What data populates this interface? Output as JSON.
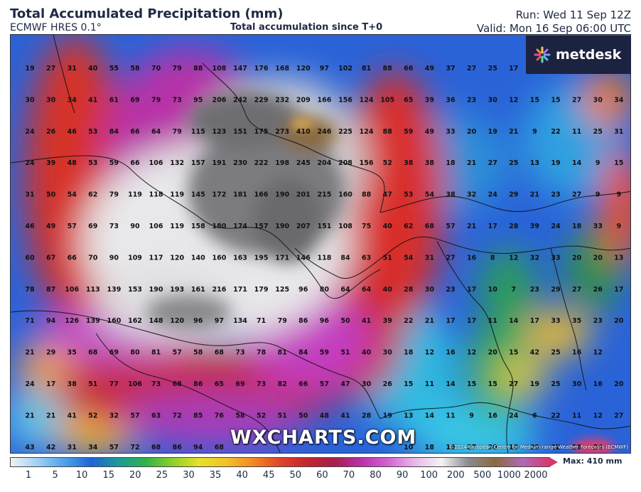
{
  "header": {
    "title": "Total Accumulated Precipitation (mm)",
    "model": "ECMWF HRES 0.1°",
    "subtitle": "Total accumulation since T+0",
    "run": "Run: Wed 11 Sep 12Z",
    "valid": "Valid: Mon 16 Sep 06:00 UTC"
  },
  "logo": {
    "icon": "asterisk-burst-icon",
    "text": "metdesk"
  },
  "watermark": "WXCHARTS.COM",
  "copyright": "©2024 European Centre for Medium-range Weather Forecasts (ECMWF)",
  "legend": {
    "labels": [
      "1",
      "5",
      "10",
      "15",
      "20",
      "25",
      "30",
      "35",
      "40",
      "45",
      "50",
      "60",
      "70",
      "80",
      "90",
      "100",
      "200",
      "500",
      "1000",
      "2000"
    ],
    "max_text": "Max: 410 mm"
  },
  "map": {
    "grid": [
      [
        "19",
        "27",
        "31",
        "40",
        "55",
        "58",
        "70",
        "79",
        "88",
        "108",
        "147",
        "176",
        "168",
        "120",
        "97",
        "102",
        "81",
        "88",
        "66",
        "49",
        "37",
        "27",
        "25",
        "17",
        "21",
        "",
        ""
      ],
      [
        "30",
        "30",
        "34",
        "41",
        "61",
        "69",
        "79",
        "73",
        "95",
        "206",
        "242",
        "229",
        "232",
        "209",
        "166",
        "156",
        "124",
        "105",
        "65",
        "39",
        "36",
        "23",
        "30",
        "12",
        "15",
        "15",
        "27",
        "30",
        "34"
      ],
      [
        "24",
        "26",
        "46",
        "53",
        "84",
        "66",
        "64",
        "79",
        "115",
        "123",
        "151",
        "175",
        "273",
        "410",
        "246",
        "225",
        "124",
        "88",
        "59",
        "49",
        "33",
        "20",
        "19",
        "21",
        "9",
        "22",
        "11",
        "25",
        "31"
      ],
      [
        "24",
        "39",
        "48",
        "53",
        "59",
        "66",
        "106",
        "132",
        "157",
        "191",
        "230",
        "222",
        "198",
        "245",
        "204",
        "208",
        "156",
        "52",
        "38",
        "38",
        "18",
        "21",
        "27",
        "25",
        "13",
        "19",
        "14",
        "9",
        "15"
      ],
      [
        "31",
        "50",
        "54",
        "62",
        "79",
        "119",
        "118",
        "119",
        "145",
        "172",
        "181",
        "166",
        "190",
        "201",
        "215",
        "160",
        "88",
        "47",
        "53",
        "54",
        "38",
        "32",
        "24",
        "29",
        "21",
        "23",
        "27",
        "9",
        "9"
      ],
      [
        "46",
        "49",
        "57",
        "69",
        "73",
        "90",
        "106",
        "119",
        "158",
        "180",
        "174",
        "157",
        "190",
        "207",
        "151",
        "108",
        "75",
        "40",
        "62",
        "68",
        "57",
        "21",
        "17",
        "28",
        "39",
        "24",
        "18",
        "33",
        "9"
      ],
      [
        "60",
        "67",
        "66",
        "70",
        "90",
        "109",
        "117",
        "120",
        "140",
        "160",
        "163",
        "195",
        "171",
        "146",
        "118",
        "84",
        "63",
        "51",
        "54",
        "31",
        "27",
        "16",
        "8",
        "12",
        "32",
        "33",
        "20",
        "20",
        "13"
      ],
      [
        "78",
        "87",
        "106",
        "113",
        "139",
        "153",
        "190",
        "193",
        "161",
        "216",
        "171",
        "179",
        "125",
        "96",
        "80",
        "64",
        "64",
        "40",
        "28",
        "30",
        "23",
        "17",
        "10",
        "7",
        "23",
        "29",
        "27",
        "26",
        "17"
      ],
      [
        "71",
        "94",
        "126",
        "139",
        "160",
        "162",
        "148",
        "120",
        "96",
        "97",
        "134",
        "71",
        "79",
        "86",
        "96",
        "50",
        "41",
        "39",
        "22",
        "21",
        "17",
        "17",
        "11",
        "14",
        "17",
        "33",
        "35",
        "23",
        "20"
      ],
      [
        "21",
        "29",
        "35",
        "68",
        "69",
        "80",
        "81",
        "57",
        "58",
        "68",
        "73",
        "78",
        "81",
        "84",
        "59",
        "51",
        "40",
        "30",
        "18",
        "12",
        "16",
        "12",
        "20",
        "15",
        "42",
        "25",
        "16",
        "12"
      ],
      [
        "24",
        "17",
        "38",
        "51",
        "77",
        "106",
        "73",
        "68",
        "86",
        "65",
        "69",
        "73",
        "82",
        "66",
        "57",
        "47",
        "30",
        "26",
        "15",
        "11",
        "14",
        "15",
        "15",
        "27",
        "19",
        "25",
        "30",
        "16",
        "20"
      ],
      [
        "21",
        "21",
        "41",
        "52",
        "32",
        "57",
        "63",
        "72",
        "85",
        "76",
        "58",
        "52",
        "51",
        "50",
        "48",
        "41",
        "28",
        "19",
        "13",
        "14",
        "11",
        "9",
        "16",
        "24",
        "6",
        "22",
        "11",
        "12",
        "27"
      ],
      [
        "43",
        "42",
        "31",
        "34",
        "57",
        "72",
        "68",
        "86",
        "94",
        "68",
        "",
        "",
        "",
        "",
        "",
        "",
        "",
        "",
        "10",
        "18",
        "18",
        "27",
        "30",
        "10",
        "29",
        "22",
        "18",
        "34"
      ]
    ]
  }
}
